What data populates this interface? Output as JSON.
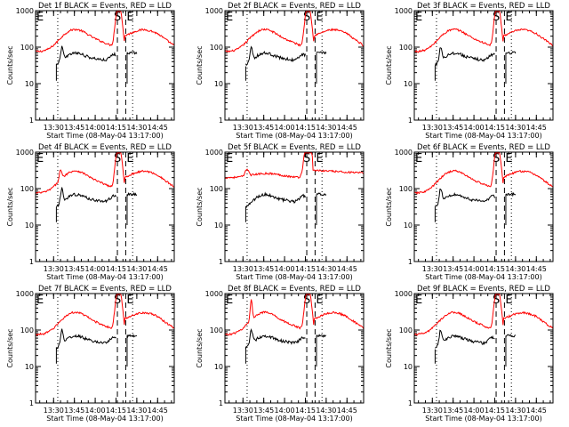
{
  "shared": {
    "xlabel": "Start Time (08-May-04 13:17:00)",
    "ylabel": "Counts/sec",
    "x_ticks": [
      "13:30",
      "13:45",
      "14:00",
      "14:15",
      "14:30",
      "14:45"
    ],
    "x_tick_minutes": [
      30,
      45,
      60,
      75,
      90,
      105
    ],
    "xlim_minutes": [
      17,
      117
    ],
    "y_ticks": [
      "1",
      "10",
      "100",
      "1000"
    ],
    "ylim": [
      1,
      1000
    ],
    "y_scale": "log",
    "colors": {
      "events": "#000000",
      "lld": "#ff0000",
      "axes": "#000000"
    },
    "interval_markers": [
      {
        "label": "E",
        "minute": 17,
        "style": "none"
      },
      {
        "label": "",
        "minute": 33,
        "style": "dotted"
      },
      {
        "label": "S",
        "minute": 76,
        "style": "dashed"
      },
      {
        "label": "E",
        "minute": 82,
        "style": "dashed"
      },
      {
        "label": "",
        "minute": 87,
        "style": "dotted"
      }
    ]
  },
  "chart_data": [
    {
      "type": "line",
      "title": "Det 1f BLACK = Events, RED = LLD",
      "series": [
        {
          "name": "Events",
          "color": "#000000"
        },
        {
          "name": "LLD",
          "color": "#ff0000"
        }
      ]
    },
    {
      "type": "line",
      "title": "Det 2f BLACK = Events, RED = LLD",
      "series": [
        {
          "name": "Events",
          "color": "#000000"
        },
        {
          "name": "LLD",
          "color": "#ff0000"
        }
      ]
    },
    {
      "type": "line",
      "title": "Det 3f BLACK = Events, RED = LLD",
      "series": [
        {
          "name": "Events",
          "color": "#000000"
        },
        {
          "name": "LLD",
          "color": "#ff0000"
        }
      ]
    },
    {
      "type": "line",
      "title": "Det 4f BLACK = Events, RED = LLD",
      "series": [
        {
          "name": "Events",
          "color": "#000000"
        },
        {
          "name": "LLD",
          "color": "#ff0000"
        }
      ]
    },
    {
      "type": "line",
      "title": "Det 5f BLACK = Events, RED = LLD",
      "series": [
        {
          "name": "Events",
          "color": "#000000"
        },
        {
          "name": "LLD",
          "color": "#ff0000"
        }
      ]
    },
    {
      "type": "line",
      "title": "Det 6f BLACK = Events, RED = LLD",
      "series": [
        {
          "name": "Events",
          "color": "#000000"
        },
        {
          "name": "LLD",
          "color": "#ff0000"
        }
      ]
    },
    {
      "type": "line",
      "title": "Det 7f BLACK = Events, RED = LLD",
      "series": [
        {
          "name": "Events",
          "color": "#000000"
        },
        {
          "name": "LLD",
          "color": "#ff0000"
        }
      ]
    },
    {
      "type": "line",
      "title": "Det 8f BLACK = Events, RED = LLD",
      "series": [
        {
          "name": "Events",
          "color": "#000000"
        },
        {
          "name": "LLD",
          "color": "#ff0000"
        }
      ]
    },
    {
      "type": "line",
      "title": "Det 9f BLACK = Events, RED = LLD",
      "series": [
        {
          "name": "Events",
          "color": "#000000"
        },
        {
          "name": "LLD",
          "color": "#ff0000"
        }
      ]
    }
  ]
}
